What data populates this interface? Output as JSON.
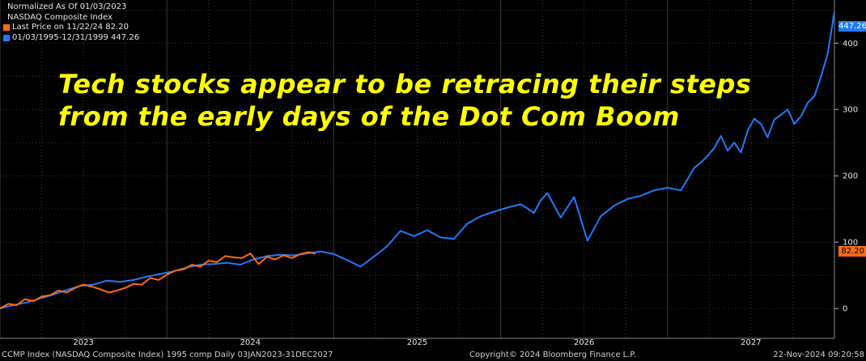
{
  "legend": {
    "title": "Normalized As Of 01/03/2023",
    "subtitle": "NASDAQ Composite Index",
    "series1_label": "Last Price on 11/22/24  82.20",
    "series2_label": "01/03/1995-12/31/1999 447.26"
  },
  "headline": {
    "line1": "Tech stocks appear to be retracing their steps",
    "line2": "from the early days of the Dot Com Boom"
  },
  "footer": {
    "left": "CCMP Index (NASDAQ Composite Index) 1995 comp  Daily 03JAN2023-31DEC2027",
    "center": "Copyright© 2024 Bloomberg Finance L.P.",
    "right": "22-Nov-2024 09:20:58"
  },
  "colors": {
    "background": "#000000",
    "series_current": "#ff6a13",
    "series_1995": "#1e7bff",
    "headline": "#ffff00",
    "grid": "#3a3a3a"
  },
  "chart_data": {
    "type": "line",
    "title": "",
    "xlabel": "",
    "ylabel": "",
    "x_ticks": [
      "2023",
      "2024",
      "2025",
      "2026",
      "2027"
    ],
    "y_ticks": [
      0,
      100,
      200,
      300,
      400
    ],
    "xlim": [
      2023.0,
      2028.0
    ],
    "ylim": [
      -45,
      465
    ],
    "grid": true,
    "y_axis_position": "right",
    "series": [
      {
        "name": "Last Price on 11/22/24  82.20",
        "color": "#ff6a13",
        "last_value": 82.2,
        "x": [
          2023.0,
          2023.05,
          2023.1,
          2023.15,
          2023.2,
          2023.25,
          2023.3,
          2023.35,
          2023.4,
          2023.45,
          2023.5,
          2023.55,
          2023.6,
          2023.65,
          2023.7,
          2023.75,
          2023.8,
          2023.85,
          2023.9,
          2023.95,
          2024.0,
          2024.05,
          2024.1,
          2024.15,
          2024.2,
          2024.25,
          2024.3,
          2024.35,
          2024.4,
          2024.45,
          2024.5,
          2024.55,
          2024.6,
          2024.65,
          2024.7,
          2024.75,
          2024.8,
          2024.85,
          2024.89
        ],
        "values": [
          0,
          7,
          5,
          14,
          11,
          18,
          20,
          27,
          24,
          31,
          36,
          33,
          29,
          24,
          27,
          31,
          37,
          36,
          46,
          43,
          51,
          57,
          59,
          66,
          63,
          72,
          70,
          79,
          77,
          76,
          83,
          67,
          78,
          74,
          80,
          76,
          82,
          85,
          82.2
        ]
      },
      {
        "name": "01/03/1995-12/31/1999 447.26",
        "color": "#1e7bff",
        "last_value": 447.26,
        "x": [
          2023.0,
          2023.08,
          2023.16,
          2023.24,
          2023.32,
          2023.4,
          2023.48,
          2023.56,
          2023.64,
          2023.72,
          2023.8,
          2023.88,
          2023.96,
          2024.04,
          2024.12,
          2024.2,
          2024.28,
          2024.36,
          2024.44,
          2024.52,
          2024.6,
          2024.68,
          2024.76,
          2024.84,
          2024.92,
          2025.0,
          2025.08,
          2025.16,
          2025.24,
          2025.32,
          2025.4,
          2025.48,
          2025.56,
          2025.64,
          2025.72,
          2025.8,
          2025.88,
          2025.96,
          2026.04,
          2026.12,
          2026.16,
          2026.2,
          2026.24,
          2026.28,
          2026.36,
          2026.44,
          2026.52,
          2026.6,
          2026.68,
          2026.76,
          2026.84,
          2026.92,
          2027.0,
          2027.08,
          2027.16,
          2027.2,
          2027.24,
          2027.28,
          2027.32,
          2027.36,
          2027.4,
          2027.44,
          2027.48,
          2027.52,
          2027.56,
          2027.6,
          2027.64,
          2027.68,
          2027.72,
          2027.76,
          2027.8,
          2027.84,
          2027.88,
          2027.92,
          2027.96,
          2028.0
        ],
        "values": [
          0,
          5,
          9,
          15,
          21,
          28,
          34,
          36,
          42,
          40,
          43,
          48,
          52,
          56,
          62,
          66,
          67,
          69,
          66,
          74,
          79,
          81,
          80,
          83,
          86,
          82,
          73,
          63,
          78,
          94,
          117,
          109,
          118,
          107,
          105,
          128,
          139,
          146,
          152,
          157,
          151,
          144,
          163,
          174,
          137,
          168,
          102,
          139,
          155,
          165,
          170,
          178,
          182,
          178,
          212,
          220,
          230,
          242,
          260,
          238,
          250,
          235,
          268,
          286,
          278,
          258,
          285,
          292,
          300,
          278,
          290,
          310,
          320,
          350,
          385,
          447.26
        ]
      }
    ]
  }
}
